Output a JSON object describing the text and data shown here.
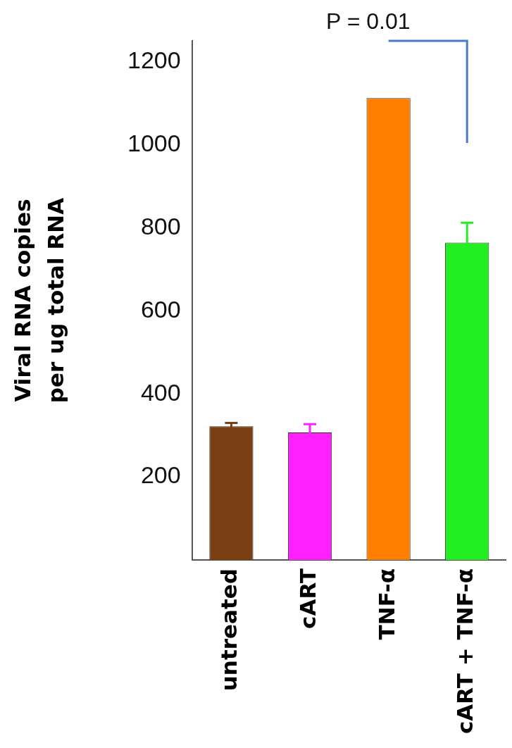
{
  "chart_data": {
    "type": "bar",
    "categories": [
      "untreated",
      "cART",
      "TNF-α",
      "cART + TNF-α"
    ],
    "values": [
      322,
      307,
      1112,
      764
    ],
    "colors": [
      "#7b3f14",
      "#ff22ff",
      "#ff7f00",
      "#22ee22"
    ],
    "errors": [
      8,
      20,
      null,
      48
    ],
    "ylabel": "Viral RNA copies\nper ug total RNA",
    "ylim": [
      0,
      1250
    ],
    "yticks": [
      200,
      400,
      600,
      800,
      1000,
      1200
    ],
    "grid": false,
    "legend": false,
    "annotations": [
      "P = 0.01"
    ]
  }
}
